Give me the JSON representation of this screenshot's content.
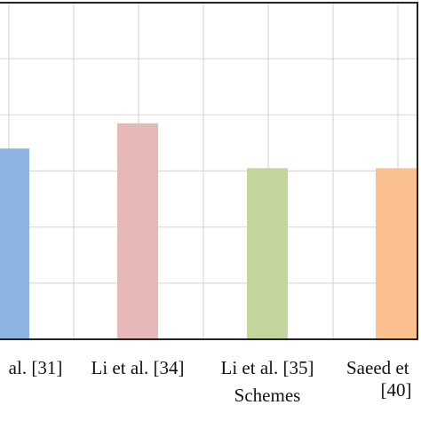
{
  "chart_data": {
    "type": "bar",
    "categories": [
      "al. [31]",
      "Li et al. [34]",
      "Li et al. [35]",
      "Saeed et [40]"
    ],
    "category_lines": [
      [
        "al. [31]"
      ],
      [
        "Li et al. [34]"
      ],
      [
        "Li et al. [35]"
      ],
      [
        "Saeed et",
        "[40]"
      ]
    ],
    "values": [
      3.4,
      3.85,
      3.05,
      3.05
    ],
    "colors": [
      "#8db4e2",
      "#e6b9b8",
      "#c3d69b",
      "#fac090"
    ],
    "xlabel": "Schemes",
    "ylabel": "",
    "ylim": [
      0,
      6
    ],
    "grid": true
  }
}
